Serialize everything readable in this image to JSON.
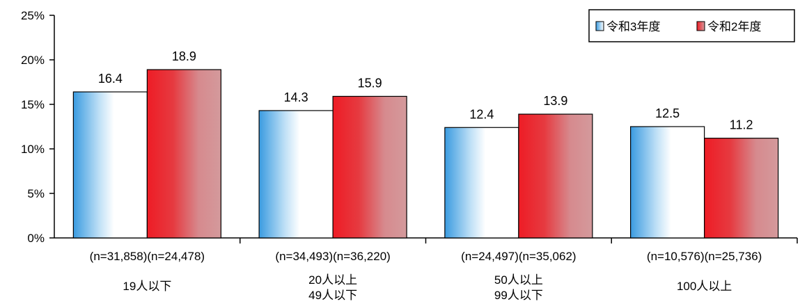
{
  "chart_data": {
    "type": "bar",
    "title": "",
    "xlabel": "",
    "ylabel": "",
    "ylim": [
      0,
      25
    ],
    "y_ticks": [
      {
        "value": 0,
        "label": "0%"
      },
      {
        "value": 5,
        "label": "5%"
      },
      {
        "value": 10,
        "label": "10%"
      },
      {
        "value": 15,
        "label": "15%"
      },
      {
        "value": 20,
        "label": "20%"
      },
      {
        "value": 25,
        "label": "25%"
      }
    ],
    "categories": [
      {
        "lines": [
          "19人以下"
        ],
        "n": [
          "(n=31,858)",
          "(n=24,478)"
        ]
      },
      {
        "lines": [
          "20人以上",
          "49人以下"
        ],
        "n": [
          "(n=34,493)",
          "(n=36,220)"
        ]
      },
      {
        "lines": [
          "50人以上",
          "99人以下"
        ],
        "n": [
          "(n=24,497)",
          "(n=35,062)"
        ]
      },
      {
        "lines": [
          "100人以上"
        ],
        "n": [
          "(n=10,576)",
          "(n=25,736)"
        ]
      }
    ],
    "series": [
      {
        "name": "令和3年度",
        "values": [
          16.4,
          14.3,
          12.4,
          12.5
        ],
        "labels": [
          "16.4",
          "14.3",
          "12.4",
          "12.5"
        ],
        "color": "#4aa8e8"
      },
      {
        "name": "令和2年度",
        "values": [
          18.9,
          15.9,
          13.9,
          11.2
        ],
        "labels": [
          "18.9",
          "15.9",
          "13.9",
          "11.2"
        ],
        "color": "#e8202a"
      }
    ],
    "legend": {
      "position": "top-right"
    },
    "grid": false
  }
}
